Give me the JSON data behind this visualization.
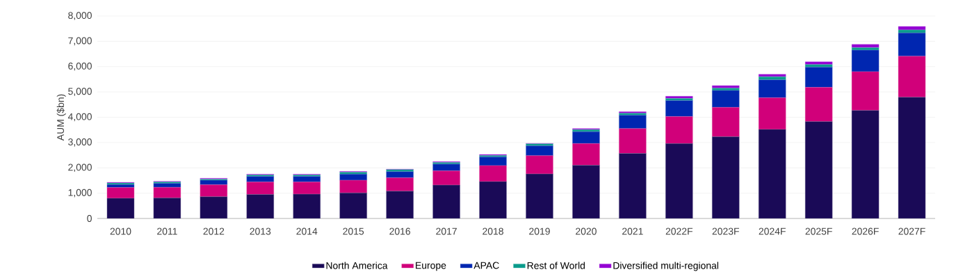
{
  "chart_data": {
    "type": "bar",
    "stacked": true,
    "ylabel": "AUM ($bn)",
    "categories": [
      "2010",
      "2011",
      "2012",
      "2013",
      "2014",
      "2015",
      "2016",
      "2017",
      "2018",
      "2019",
      "2020",
      "2021",
      "2022F",
      "2023F",
      "2024F",
      "2025F",
      "2026F",
      "2027F"
    ],
    "series": [
      {
        "name": "North America",
        "color": "#1a0a57",
        "values": [
          800,
          810,
          860,
          950,
          960,
          1010,
          1080,
          1320,
          1460,
          1760,
          2100,
          2570,
          2960,
          3230,
          3520,
          3830,
          4270,
          4790
        ]
      },
      {
        "name": "Europe",
        "color": "#d1007a",
        "values": [
          420,
          420,
          470,
          490,
          480,
          500,
          530,
          560,
          630,
          720,
          860,
          980,
          1070,
          1160,
          1250,
          1350,
          1530,
          1620
        ]
      },
      {
        "name": "APAC",
        "color": "#0026b0",
        "values": [
          120,
          160,
          180,
          220,
          220,
          240,
          240,
          270,
          340,
          390,
          470,
          530,
          630,
          670,
          710,
          800,
          850,
          920
        ]
      },
      {
        "name": "Rest of World",
        "color": "#0a9c8c",
        "values": [
          60,
          50,
          40,
          60,
          60,
          80,
          80,
          60,
          60,
          80,
          80,
          80,
          80,
          90,
          120,
          100,
          100,
          120
        ]
      },
      {
        "name": "Diversified multi-regional",
        "color": "#9400d3",
        "values": [
          30,
          30,
          40,
          30,
          30,
          30,
          20,
          40,
          40,
          20,
          40,
          60,
          90,
          100,
          100,
          110,
          130,
          140
        ]
      }
    ],
    "ylim": [
      0,
      8000
    ],
    "yticks": [
      {
        "value": 0,
        "label": "0"
      },
      {
        "value": 1000,
        "label": "1,000"
      },
      {
        "value": 2000,
        "label": "2,000"
      },
      {
        "value": 3000,
        "label": "3,000"
      },
      {
        "value": 4000,
        "label": "4,000"
      },
      {
        "value": 5000,
        "label": "5,000"
      },
      {
        "value": 6000,
        "label": "6,000"
      },
      {
        "value": 7000,
        "label": "7,000"
      },
      {
        "value": 8000,
        "label": "8,000"
      }
    ],
    "grid": "y",
    "legend": "bottom"
  }
}
